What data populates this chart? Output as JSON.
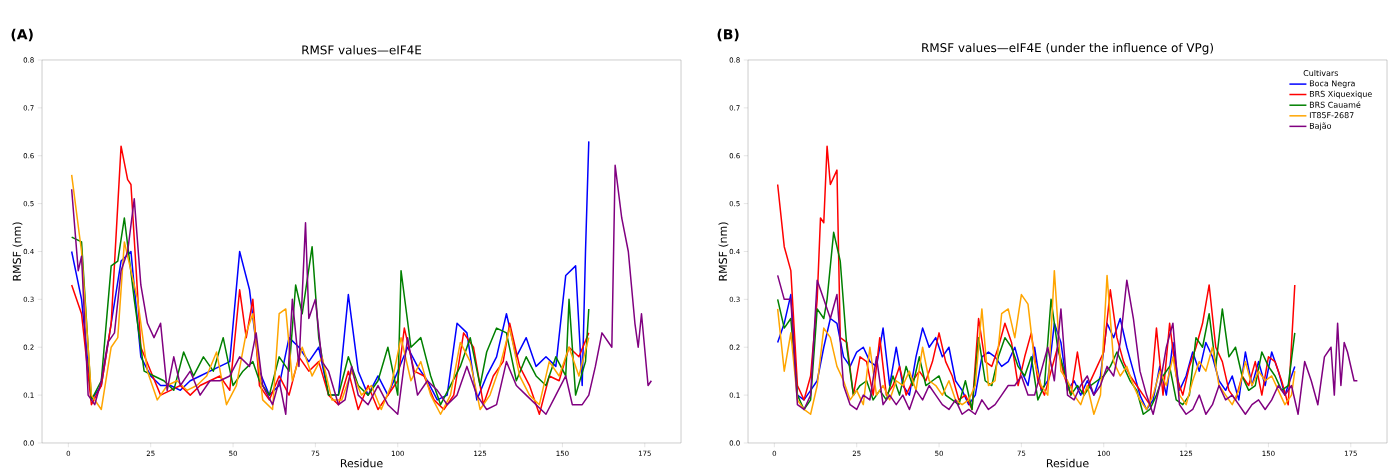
{
  "chart_data": [
    {
      "type": "line",
      "title": "RMSF values—eIF4E",
      "xlabel": "Residue",
      "ylabel": "RMSF (nm)",
      "annotations": [
        "(A)"
      ],
      "legend": false,
      "xlim": [
        -8,
        186
      ],
      "xticks": [
        0,
        25,
        50,
        75,
        100,
        125,
        150,
        175
      ],
      "ylim": [
        0,
        0.8
      ],
      "yticks": [
        {
          "value": 0,
          "label": "0.0"
        },
        {
          "value": 0.1,
          "label": "0.1"
        },
        {
          "value": 0.2,
          "label": "0.2"
        },
        {
          "value": 0.3,
          "label": "0.3"
        },
        {
          "value": 0.4,
          "label": "0.4"
        },
        {
          "value": 0.5,
          "label": "0.5"
        },
        {
          "value": 0.6,
          "label": "0.6"
        },
        {
          "value": 0.7,
          "label": "0.7"
        },
        {
          "value": 0.8,
          "label": "0.8"
        }
      ],
      "series": [
        {
          "color": "#0000ff",
          "x": [
            1,
            4,
            7,
            10,
            13,
            16,
            19,
            22,
            25,
            28,
            31,
            34,
            37,
            40,
            43,
            46,
            49,
            52,
            55,
            58,
            61,
            64,
            67,
            70,
            73,
            76,
            79,
            82,
            85,
            88,
            91,
            94,
            97,
            100,
            103,
            106,
            109,
            112,
            115,
            118,
            121,
            124,
            127,
            130,
            133,
            136,
            139,
            142,
            145,
            148,
            151,
            154,
            156,
            157,
            158
          ],
          "values": [
            0.4,
            0.3,
            0.09,
            0.12,
            0.25,
            0.38,
            0.4,
            0.18,
            0.14,
            0.12,
            0.12,
            0.11,
            0.13,
            0.14,
            0.15,
            0.16,
            0.17,
            0.4,
            0.32,
            0.15,
            0.1,
            0.12,
            0.22,
            0.2,
            0.17,
            0.2,
            0.1,
            0.1,
            0.31,
            0.15,
            0.1,
            0.14,
            0.1,
            0.15,
            0.2,
            0.16,
            0.13,
            0.09,
            0.1,
            0.25,
            0.23,
            0.09,
            0.14,
            0.18,
            0.27,
            0.18,
            0.22,
            0.16,
            0.18,
            0.16,
            0.35,
            0.37,
            0.12,
            0.4,
            0.63
          ]
        },
        {
          "color": "#ff0000",
          "x": [
            1,
            4,
            7,
            10,
            13,
            16,
            18,
            19,
            22,
            25,
            28,
            31,
            34,
            37,
            40,
            43,
            46,
            49,
            52,
            54,
            56,
            58,
            61,
            64,
            67,
            70,
            73,
            76,
            79,
            82,
            85,
            88,
            91,
            94,
            97,
            100,
            102,
            105,
            108,
            111,
            114,
            117,
            120,
            123,
            126,
            129,
            132,
            134,
            137,
            140,
            143,
            146,
            149,
            152,
            155,
            158
          ],
          "values": [
            0.33,
            0.27,
            0.08,
            0.12,
            0.25,
            0.62,
            0.55,
            0.54,
            0.2,
            0.15,
            0.1,
            0.11,
            0.12,
            0.1,
            0.12,
            0.13,
            0.14,
            0.11,
            0.32,
            0.22,
            0.3,
            0.12,
            0.09,
            0.14,
            0.1,
            0.18,
            0.15,
            0.17,
            0.1,
            0.08,
            0.15,
            0.07,
            0.12,
            0.07,
            0.1,
            0.13,
            0.24,
            0.15,
            0.14,
            0.09,
            0.07,
            0.1,
            0.23,
            0.2,
            0.08,
            0.14,
            0.17,
            0.25,
            0.16,
            0.12,
            0.06,
            0.14,
            0.13,
            0.2,
            0.18,
            0.23
          ]
        },
        {
          "color": "#008000",
          "x": [
            1,
            4,
            7,
            10,
            13,
            15,
            17,
            20,
            23,
            26,
            29,
            32,
            35,
            38,
            41,
            44,
            47,
            50,
            53,
            56,
            58,
            61,
            64,
            67,
            69,
            71,
            74,
            76,
            79,
            82,
            85,
            88,
            91,
            94,
            97,
            100,
            101,
            104,
            107,
            110,
            113,
            116,
            119,
            122,
            125,
            127,
            130,
            133,
            136,
            139,
            142,
            145,
            148,
            151,
            152,
            154,
            157,
            158
          ],
          "values": [
            0.43,
            0.42,
            0.09,
            0.13,
            0.37,
            0.38,
            0.47,
            0.3,
            0.15,
            0.14,
            0.13,
            0.11,
            0.19,
            0.14,
            0.18,
            0.15,
            0.22,
            0.12,
            0.15,
            0.17,
            0.13,
            0.1,
            0.18,
            0.15,
            0.33,
            0.27,
            0.41,
            0.22,
            0.1,
            0.1,
            0.18,
            0.12,
            0.1,
            0.13,
            0.2,
            0.1,
            0.36,
            0.2,
            0.22,
            0.14,
            0.08,
            0.12,
            0.16,
            0.22,
            0.12,
            0.19,
            0.24,
            0.23,
            0.13,
            0.18,
            0.14,
            0.12,
            0.18,
            0.14,
            0.3,
            0.1,
            0.17,
            0.28
          ]
        },
        {
          "color": "#ffa500",
          "x": [
            1,
            4,
            7,
            10,
            13,
            15,
            17,
            19,
            21,
            24,
            27,
            30,
            33,
            36,
            39,
            42,
            45,
            48,
            51,
            54,
            56,
            59,
            62,
            64,
            66,
            68,
            71,
            74,
            77,
            80,
            83,
            86,
            89,
            92,
            95,
            98,
            101,
            104,
            107,
            110,
            113,
            116,
            119,
            122,
            125,
            128,
            131,
            134,
            137,
            140,
            143,
            146,
            149,
            152,
            155,
            158
          ],
          "values": [
            0.56,
            0.4,
            0.1,
            0.07,
            0.2,
            0.22,
            0.42,
            0.36,
            0.3,
            0.15,
            0.09,
            0.12,
            0.13,
            0.11,
            0.12,
            0.14,
            0.19,
            0.08,
            0.12,
            0.23,
            0.27,
            0.09,
            0.07,
            0.27,
            0.28,
            0.13,
            0.2,
            0.14,
            0.18,
            0.09,
            0.09,
            0.15,
            0.1,
            0.12,
            0.07,
            0.12,
            0.22,
            0.13,
            0.17,
            0.1,
            0.06,
            0.1,
            0.21,
            0.17,
            0.07,
            0.1,
            0.16,
            0.24,
            0.14,
            0.1,
            0.08,
            0.17,
            0.14,
            0.2,
            0.14,
            0.22
          ]
        },
        {
          "color": "#800080",
          "x": [
            1,
            3,
            4,
            6,
            8,
            10,
            12,
            14,
            16,
            18,
            20,
            22,
            24,
            26,
            28,
            30,
            32,
            34,
            37,
            40,
            43,
            46,
            49,
            52,
            55,
            57,
            59,
            62,
            64,
            66,
            68,
            70,
            72,
            73,
            75,
            77,
            79,
            82,
            84,
            86,
            88,
            91,
            94,
            97,
            100,
            103,
            106,
            109,
            112,
            115,
            118,
            121,
            124,
            127,
            130,
            133,
            136,
            139,
            142,
            145,
            148,
            151,
            153,
            156,
            158,
            160,
            162,
            165,
            166,
            168,
            170,
            172,
            173,
            174,
            176,
            177
          ],
          "values": [
            0.53,
            0.36,
            0.39,
            0.1,
            0.08,
            0.13,
            0.21,
            0.23,
            0.36,
            0.4,
            0.51,
            0.33,
            0.25,
            0.22,
            0.25,
            0.11,
            0.18,
            0.12,
            0.15,
            0.1,
            0.13,
            0.13,
            0.14,
            0.18,
            0.16,
            0.23,
            0.12,
            0.08,
            0.13,
            0.06,
            0.3,
            0.16,
            0.46,
            0.26,
            0.3,
            0.17,
            0.15,
            0.08,
            0.09,
            0.16,
            0.1,
            0.08,
            0.12,
            0.08,
            0.06,
            0.22,
            0.1,
            0.13,
            0.11,
            0.08,
            0.1,
            0.16,
            0.1,
            0.07,
            0.08,
            0.17,
            0.12,
            0.1,
            0.08,
            0.06,
            0.1,
            0.14,
            0.08,
            0.08,
            0.1,
            0.16,
            0.23,
            0.2,
            0.58,
            0.47,
            0.4,
            0.25,
            0.2,
            0.27,
            0.12,
            0.13
          ]
        }
      ]
    },
    {
      "type": "line",
      "title": "RMSF values—eIF4E (under the influence of VPg)",
      "xlabel": "Residue",
      "ylabel": "RMSF (nm)",
      "annotations": [
        "(B)"
      ],
      "legend": "top right",
      "legend_title": "Cultivars",
      "xlim": [
        -8,
        186
      ],
      "xticks": [
        0,
        25,
        50,
        75,
        100,
        125,
        150,
        175
      ],
      "ylim": [
        0,
        0.8
      ],
      "yticks": [
        {
          "value": 0,
          "label": "0.0"
        },
        {
          "value": 0.1,
          "label": "0.1"
        },
        {
          "value": 0.2,
          "label": "0.2"
        },
        {
          "value": 0.3,
          "label": "0.3"
        },
        {
          "value": 0.4,
          "label": "0.4"
        },
        {
          "value": 0.5,
          "label": "0.5"
        },
        {
          "value": 0.6,
          "label": "0.6"
        },
        {
          "value": 0.7,
          "label": "0.7"
        },
        {
          "value": 0.8,
          "label": "0.8"
        }
      ],
      "series": [
        {
          "name": "Boca Negra",
          "color": "#0000ff",
          "x": [
            1,
            3,
            5,
            7,
            9,
            11,
            13,
            15,
            17,
            19,
            21,
            23,
            25,
            27,
            29,
            31,
            33,
            35,
            37,
            39,
            41,
            43,
            45,
            47,
            49,
            51,
            53,
            55,
            57,
            59,
            61,
            63,
            65,
            67,
            69,
            71,
            73,
            75,
            77,
            79,
            81,
            83,
            85,
            87,
            89,
            91,
            93,
            95,
            97,
            99,
            101,
            103,
            105,
            107,
            109,
            111,
            113,
            115,
            117,
            119,
            121,
            123,
            125,
            127,
            129,
            131,
            133,
            135,
            137,
            139,
            141,
            143,
            145,
            147,
            149,
            151,
            153,
            155,
            157,
            158
          ],
          "values": [
            0.21,
            0.25,
            0.31,
            0.1,
            0.09,
            0.11,
            0.13,
            0.2,
            0.26,
            0.25,
            0.18,
            0.16,
            0.19,
            0.2,
            0.17,
            0.16,
            0.24,
            0.12,
            0.2,
            0.12,
            0.1,
            0.18,
            0.24,
            0.2,
            0.22,
            0.18,
            0.2,
            0.13,
            0.11,
            0.08,
            0.1,
            0.18,
            0.19,
            0.18,
            0.16,
            0.17,
            0.2,
            0.15,
            0.12,
            0.2,
            0.11,
            0.13,
            0.25,
            0.21,
            0.11,
            0.13,
            0.1,
            0.13,
            0.1,
            0.14,
            0.25,
            0.22,
            0.26,
            0.2,
            0.15,
            0.1,
            0.07,
            0.09,
            0.16,
            0.1,
            0.21,
            0.11,
            0.14,
            0.19,
            0.15,
            0.21,
            0.18,
            0.13,
            0.11,
            0.14,
            0.09,
            0.19,
            0.12,
            0.17,
            0.12,
            0.19,
            0.15,
            0.1,
            0.14,
            0.16
          ]
        },
        {
          "name": "BRS Xiquexique",
          "color": "#ff0000",
          "x": [
            1,
            3,
            5,
            7,
            9,
            11,
            13,
            14,
            15,
            16,
            17,
            19,
            20,
            22,
            24,
            26,
            28,
            30,
            32,
            34,
            36,
            38,
            40,
            42,
            44,
            46,
            48,
            50,
            52,
            54,
            56,
            58,
            60,
            62,
            64,
            66,
            68,
            70,
            72,
            74,
            76,
            78,
            80,
            82,
            84,
            86,
            88,
            90,
            92,
            94,
            96,
            98,
            100,
            102,
            104,
            106,
            108,
            110,
            112,
            114,
            116,
            118,
            120,
            122,
            124,
            126,
            128,
            130,
            132,
            134,
            136,
            138,
            140,
            142,
            144,
            146,
            148,
            150,
            152,
            154,
            156,
            158
          ],
          "values": [
            0.54,
            0.41,
            0.36,
            0.12,
            0.09,
            0.14,
            0.3,
            0.47,
            0.46,
            0.62,
            0.54,
            0.57,
            0.22,
            0.21,
            0.1,
            0.18,
            0.17,
            0.1,
            0.22,
            0.1,
            0.12,
            0.16,
            0.1,
            0.13,
            0.15,
            0.13,
            0.17,
            0.23,
            0.17,
            0.14,
            0.09,
            0.1,
            0.07,
            0.26,
            0.17,
            0.16,
            0.2,
            0.25,
            0.21,
            0.12,
            0.18,
            0.23,
            0.13,
            0.1,
            0.15,
            0.2,
            0.14,
            0.1,
            0.19,
            0.1,
            0.13,
            0.16,
            0.19,
            0.32,
            0.22,
            0.17,
            0.14,
            0.12,
            0.1,
            0.08,
            0.24,
            0.1,
            0.25,
            0.14,
            0.1,
            0.16,
            0.2,
            0.25,
            0.33,
            0.2,
            0.17,
            0.11,
            0.09,
            0.14,
            0.12,
            0.17,
            0.1,
            0.18,
            0.17,
            0.13,
            0.08,
            0.33
          ]
        },
        {
          "name": "BRS Cauamé",
          "color": "#008000",
          "x": [
            1,
            3,
            5,
            7,
            9,
            11,
            13,
            15,
            16,
            18,
            20,
            22,
            24,
            26,
            28,
            30,
            32,
            34,
            36,
            38,
            40,
            42,
            44,
            46,
            48,
            50,
            52,
            54,
            56,
            58,
            60,
            62,
            64,
            66,
            68,
            70,
            72,
            74,
            76,
            78,
            80,
            82,
            84,
            86,
            88,
            90,
            92,
            94,
            96,
            98,
            100,
            102,
            104,
            106,
            108,
            110,
            112,
            114,
            116,
            118,
            120,
            122,
            124,
            126,
            128,
            130,
            132,
            134,
            136,
            138,
            140,
            142,
            144,
            146,
            148,
            150,
            152,
            154,
            156,
            158
          ],
          "values": [
            0.3,
            0.24,
            0.26,
            0.1,
            0.07,
            0.09,
            0.28,
            0.26,
            0.3,
            0.44,
            0.38,
            0.2,
            0.1,
            0.12,
            0.13,
            0.09,
            0.11,
            0.09,
            0.14,
            0.1,
            0.16,
            0.12,
            0.18,
            0.12,
            0.13,
            0.14,
            0.1,
            0.09,
            0.08,
            0.13,
            0.07,
            0.22,
            0.13,
            0.12,
            0.18,
            0.22,
            0.2,
            0.16,
            0.14,
            0.18,
            0.09,
            0.12,
            0.3,
            0.2,
            0.15,
            0.1,
            0.12,
            0.1,
            0.12,
            0.13,
            0.14,
            0.16,
            0.19,
            0.16,
            0.13,
            0.11,
            0.06,
            0.07,
            0.1,
            0.14,
            0.16,
            0.09,
            0.08,
            0.1,
            0.22,
            0.2,
            0.27,
            0.16,
            0.28,
            0.18,
            0.2,
            0.14,
            0.11,
            0.12,
            0.19,
            0.16,
            0.14,
            0.11,
            0.12,
            0.23
          ]
        },
        {
          "name": "IT85F-2687",
          "color": "#ffa500",
          "x": [
            1,
            3,
            5,
            7,
            9,
            11,
            13,
            15,
            17,
            19,
            21,
            23,
            25,
            27,
            29,
            31,
            33,
            35,
            37,
            39,
            41,
            43,
            45,
            47,
            49,
            51,
            53,
            55,
            57,
            59,
            61,
            63,
            65,
            67,
            69,
            71,
            73,
            75,
            77,
            79,
            81,
            83,
            85,
            87,
            89,
            91,
            93,
            95,
            97,
            99,
            101,
            103,
            105,
            107,
            109,
            111,
            113,
            115,
            117,
            119,
            121,
            123,
            125,
            127,
            129,
            131,
            133,
            135,
            137,
            139,
            141,
            143,
            145,
            147,
            149,
            151,
            153,
            155,
            157,
            158
          ],
          "values": [
            0.28,
            0.15,
            0.23,
            0.09,
            0.07,
            0.06,
            0.12,
            0.24,
            0.22,
            0.16,
            0.13,
            0.09,
            0.11,
            0.08,
            0.2,
            0.1,
            0.12,
            0.09,
            0.13,
            0.12,
            0.15,
            0.11,
            0.2,
            0.13,
            0.12,
            0.1,
            0.13,
            0.09,
            0.08,
            0.09,
            0.12,
            0.28,
            0.12,
            0.13,
            0.27,
            0.28,
            0.22,
            0.31,
            0.29,
            0.17,
            0.12,
            0.1,
            0.36,
            0.15,
            0.13,
            0.1,
            0.08,
            0.12,
            0.06,
            0.1,
            0.35,
            0.17,
            0.14,
            0.16,
            0.12,
            0.09,
            0.07,
            0.1,
            0.15,
            0.12,
            0.18,
            0.1,
            0.08,
            0.13,
            0.17,
            0.15,
            0.2,
            0.12,
            0.1,
            0.08,
            0.11,
            0.17,
            0.12,
            0.15,
            0.13,
            0.14,
            0.11,
            0.08,
            0.1,
            0.15
          ]
        },
        {
          "name": "Bajão",
          "color": "#800080",
          "x": [
            1,
            3,
            5,
            7,
            9,
            11,
            13,
            15,
            17,
            19,
            21,
            23,
            25,
            27,
            29,
            31,
            33,
            35,
            37,
            39,
            41,
            43,
            45,
            47,
            49,
            51,
            53,
            55,
            57,
            59,
            61,
            63,
            65,
            67,
            69,
            71,
            73,
            75,
            77,
            79,
            81,
            83,
            85,
            87,
            89,
            91,
            93,
            95,
            97,
            99,
            101,
            103,
            105,
            107,
            109,
            111,
            113,
            115,
            117,
            119,
            121,
            123,
            125,
            127,
            129,
            131,
            133,
            135,
            137,
            139,
            141,
            143,
            145,
            147,
            149,
            151,
            153,
            155,
            157,
            159,
            161,
            163,
            165,
            167,
            169,
            170,
            171,
            172,
            173,
            174,
            176,
            177
          ],
          "values": [
            0.35,
            0.3,
            0.3,
            0.08,
            0.07,
            0.1,
            0.34,
            0.3,
            0.26,
            0.31,
            0.12,
            0.08,
            0.07,
            0.1,
            0.09,
            0.18,
            0.08,
            0.1,
            0.08,
            0.1,
            0.07,
            0.11,
            0.09,
            0.12,
            0.1,
            0.08,
            0.07,
            0.09,
            0.06,
            0.07,
            0.06,
            0.09,
            0.07,
            0.08,
            0.1,
            0.12,
            0.12,
            0.14,
            0.1,
            0.1,
            0.15,
            0.2,
            0.13,
            0.28,
            0.1,
            0.09,
            0.12,
            0.14,
            0.1,
            0.12,
            0.16,
            0.14,
            0.21,
            0.34,
            0.26,
            0.15,
            0.1,
            0.06,
            0.12,
            0.2,
            0.25,
            0.08,
            0.06,
            0.07,
            0.1,
            0.06,
            0.08,
            0.12,
            0.09,
            0.1,
            0.08,
            0.06,
            0.08,
            0.09,
            0.07,
            0.09,
            0.12,
            0.1,
            0.12,
            0.06,
            0.17,
            0.13,
            0.08,
            0.18,
            0.2,
            0.1,
            0.25,
            0.12,
            0.21,
            0.19,
            0.13,
            0.13
          ]
        }
      ]
    }
  ]
}
